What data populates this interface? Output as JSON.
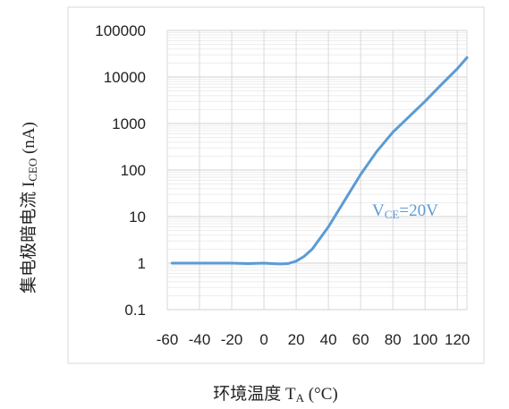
{
  "chart_data": {
    "type": "line",
    "xlabel": {
      "main": "环境温度 T",
      "sub": "A",
      "tail": " (°C)"
    },
    "ylabel": {
      "main": "集电极暗电流 I",
      "sub": "CEO",
      "tail": " (nA)"
    },
    "xlim": [
      -60,
      126
    ],
    "ylim": [
      0.1,
      100000
    ],
    "yscale": "log",
    "x_ticks": [
      -60,
      -40,
      -20,
      0,
      20,
      40,
      60,
      80,
      100,
      120
    ],
    "x_tick_labels": [
      "-60",
      "-40",
      "-20",
      "0",
      "20",
      "40",
      "60",
      "80",
      "100",
      "120"
    ],
    "y_ticks": [
      0.1,
      1,
      10,
      100,
      1000,
      10000,
      100000
    ],
    "y_tick_labels": [
      "0.1",
      "1",
      "10",
      "100",
      "1000",
      "10000",
      "100000"
    ],
    "grid": true,
    "annotation": {
      "main": "V",
      "sub": "CE",
      "tail": "=20V"
    },
    "series": [
      {
        "color": "#5B9BD5",
        "x": [
          -57,
          -40,
          -20,
          -10,
          0,
          5,
          10,
          15,
          20,
          25,
          30,
          40,
          50,
          60,
          70,
          80,
          90,
          100,
          110,
          120,
          126
        ],
        "y": [
          1.0,
          1.0,
          1.0,
          0.98,
          1.0,
          0.98,
          0.96,
          0.98,
          1.1,
          1.4,
          2.0,
          6.0,
          22,
          80,
          250,
          650,
          1400,
          3000,
          6800,
          15000,
          26000
        ]
      }
    ]
  }
}
